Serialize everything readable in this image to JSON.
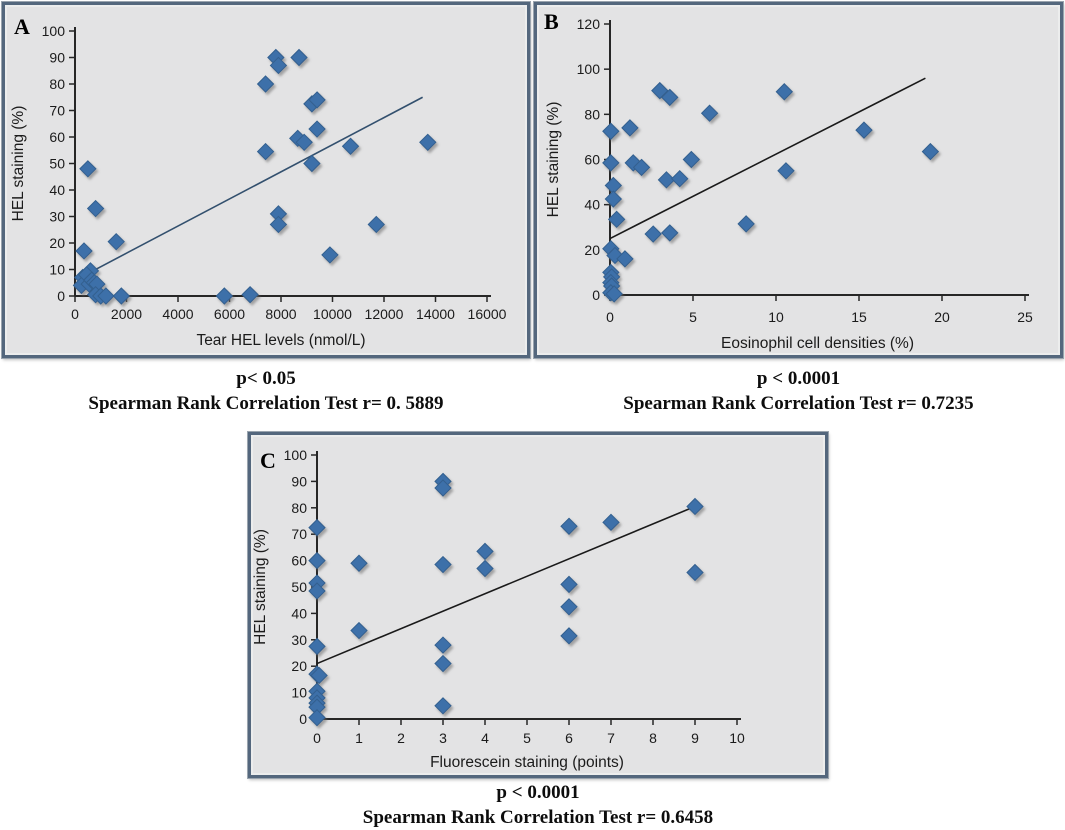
{
  "figure": {
    "background": "#ffffff",
    "panel_bg": "#e3e3e4",
    "panel_border": "#54677d",
    "marker_color": "#3e6fa9",
    "marker_edge": "#33608f",
    "axis_color": "#262626"
  },
  "chart_data": [
    {
      "panel_label": "A",
      "type": "scatter",
      "title": "",
      "xlabel": "Tear HEL levels (nmol/L)",
      "ylabel": "HEL  staining (%)",
      "xlim": [
        0,
        16000
      ],
      "ylim": [
        0,
        100
      ],
      "xticks": [
        0,
        2000,
        4000,
        6000,
        8000,
        10000,
        12000,
        14000,
        16000
      ],
      "yticks": [
        0,
        10,
        20,
        30,
        40,
        50,
        60,
        70,
        80,
        90,
        100
      ],
      "grid": false,
      "legend": false,
      "points": [
        [
          500,
          48
        ],
        [
          800,
          33
        ],
        [
          1600,
          20.5
        ],
        [
          350,
          17
        ],
        [
          600,
          9.5
        ],
        [
          300,
          7
        ],
        [
          250,
          4
        ],
        [
          450,
          8
        ],
        [
          550,
          4.5
        ],
        [
          650,
          6
        ],
        [
          750,
          5
        ],
        [
          850,
          4.5
        ],
        [
          800,
          0.5
        ],
        [
          1000,
          0
        ],
        [
          1200,
          0
        ],
        [
          1800,
          0
        ],
        [
          5800,
          0
        ],
        [
          6800,
          0.5
        ],
        [
          7400,
          80
        ],
        [
          7800,
          90
        ],
        [
          7900,
          87
        ],
        [
          8700,
          90
        ],
        [
          7400,
          54.5
        ],
        [
          8650,
          59.5
        ],
        [
          8900,
          58
        ],
        [
          9200,
          72.5
        ],
        [
          9400,
          74
        ],
        [
          9400,
          63
        ],
        [
          9200,
          50
        ],
        [
          10700,
          56.5
        ],
        [
          13700,
          58
        ],
        [
          7900,
          31
        ],
        [
          7900,
          27
        ],
        [
          9900,
          15.5
        ],
        [
          11700,
          27
        ]
      ],
      "trendline": {
        "x1": 600,
        "y1": 9,
        "x2": 13500,
        "y2": 75
      },
      "trend_color": "#33506e"
    },
    {
      "panel_label": "B",
      "type": "scatter",
      "title": "",
      "xlabel": "Eosinophil cell densities (%)",
      "ylabel": "HEL staining  (%)",
      "xlim": [
        0,
        25
      ],
      "ylim": [
        0,
        120
      ],
      "xticks": [
        0,
        5,
        10,
        15,
        20,
        25
      ],
      "yticks": [
        0,
        20,
        40,
        60,
        80,
        100,
        120
      ],
      "grid": false,
      "legend": false,
      "points": [
        [
          0.05,
          72.5
        ],
        [
          1.2,
          74
        ],
        [
          0.05,
          58.5
        ],
        [
          1.4,
          58.5
        ],
        [
          1.9,
          56.5
        ],
        [
          0.2,
          48.5
        ],
        [
          0.2,
          42.5
        ],
        [
          0.4,
          33.5
        ],
        [
          0.05,
          20.5
        ],
        [
          0.3,
          17.5
        ],
        [
          0.9,
          16
        ],
        [
          0.05,
          10
        ],
        [
          0.1,
          8
        ],
        [
          0.05,
          5.5
        ],
        [
          0.1,
          4
        ],
        [
          0.05,
          1
        ],
        [
          0.25,
          0.5
        ],
        [
          3.0,
          90.5
        ],
        [
          3.6,
          87.5
        ],
        [
          3.4,
          51
        ],
        [
          4.2,
          51.5
        ],
        [
          4.9,
          60
        ],
        [
          6.0,
          80.5
        ],
        [
          2.6,
          27
        ],
        [
          3.6,
          27.5
        ],
        [
          8.2,
          31.5
        ],
        [
          10.5,
          90
        ],
        [
          10.6,
          55
        ],
        [
          15.3,
          73
        ],
        [
          19.3,
          63.5
        ]
      ],
      "trendline": {
        "x1": 0,
        "y1": 25,
        "x2": 19.0,
        "y2": 96
      },
      "trend_color": "#1a1a1a"
    },
    {
      "panel_label": "C",
      "type": "scatter",
      "title": "",
      "xlabel": "Fluorescein staining  (points)",
      "ylabel": "HEL staining (%)",
      "xlim": [
        0,
        10
      ],
      "ylim": [
        0,
        100
      ],
      "xticks": [
        0,
        1,
        2,
        3,
        4,
        5,
        6,
        7,
        8,
        9,
        10
      ],
      "yticks": [
        0,
        10,
        20,
        30,
        40,
        50,
        60,
        70,
        80,
        90,
        100
      ],
      "grid": false,
      "legend": false,
      "points": [
        [
          0,
          72.5
        ],
        [
          0,
          60
        ],
        [
          0,
          51.5
        ],
        [
          0,
          48.5
        ],
        [
          0,
          27.5
        ],
        [
          0,
          17
        ],
        [
          0.05,
          16.5
        ],
        [
          0,
          10.5
        ],
        [
          0,
          8
        ],
        [
          0,
          6
        ],
        [
          0,
          4.5
        ],
        [
          0,
          0.5
        ],
        [
          1,
          59
        ],
        [
          1,
          33.5
        ],
        [
          3,
          90
        ],
        [
          3,
          87.5
        ],
        [
          3,
          58.5
        ],
        [
          3,
          28
        ],
        [
          3,
          21
        ],
        [
          3,
          5
        ],
        [
          4,
          63.5
        ],
        [
          4,
          57
        ],
        [
          6,
          73
        ],
        [
          6,
          51
        ],
        [
          6,
          42.5
        ],
        [
          6,
          31.5
        ],
        [
          7,
          74.5
        ],
        [
          9,
          80.5
        ],
        [
          9,
          55.5
        ]
      ],
      "trendline": {
        "x1": 0,
        "y1": 21,
        "x2": 9.0,
        "y2": 80.5
      },
      "trend_color": "#1a1a1a"
    }
  ],
  "captions": {
    "a": {
      "line1": "p< 0.05",
      "line2": "Spearman Rank Correlation Test r= 0. 5889"
    },
    "b": {
      "line1": "p < 0.0001",
      "line2": "Spearman Rank Correlation Test r= 0.7235"
    },
    "c": {
      "line1": "p < 0.0001",
      "line2": "Spearman Rank Correlation Test r= 0.6458"
    }
  }
}
